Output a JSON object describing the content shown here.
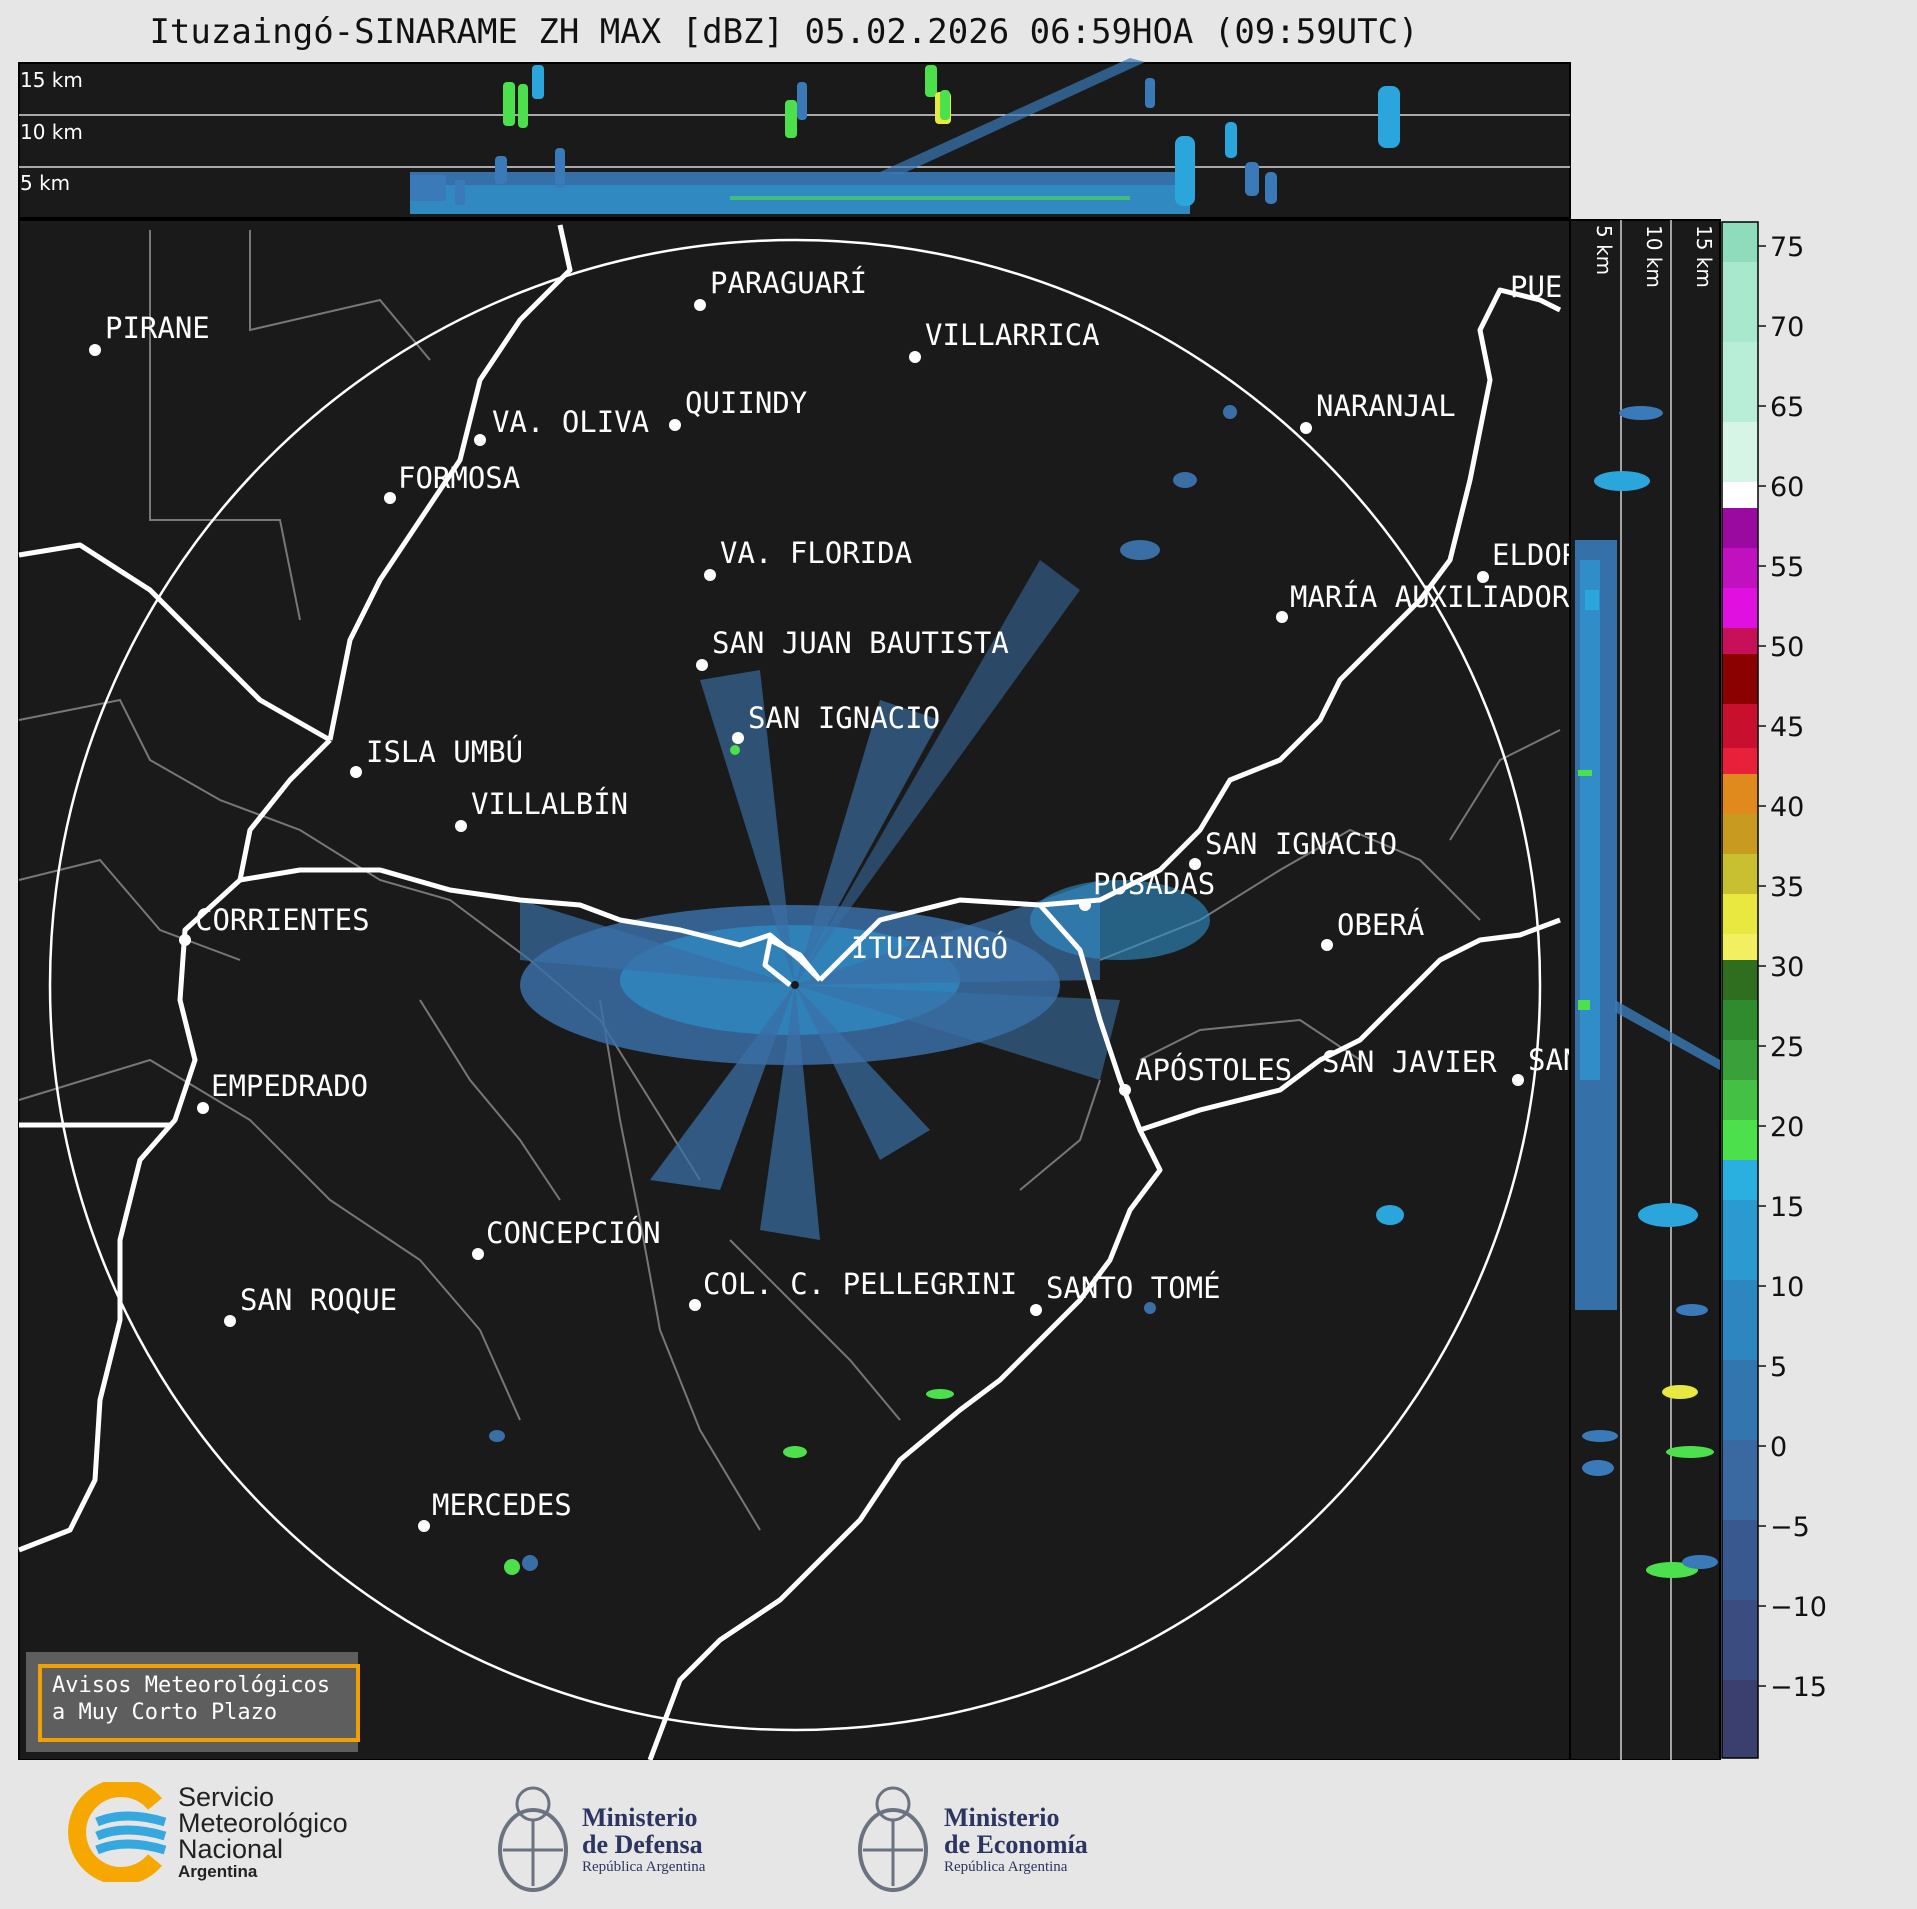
{
  "header": {
    "title": "Ituzaingó-SINARAME ZH MAX [dBZ] 05.02.2026 06:59HOA (09:59UTC)"
  },
  "top_panel": {
    "altitude_labels": [
      "15 km",
      "10 km",
      "5 km"
    ]
  },
  "side_panel": {
    "altitude_labels": [
      "5 km",
      "10 km",
      "15 km"
    ]
  },
  "colorbar": {
    "ticks": [
      "75",
      "70",
      "65",
      "60",
      "55",
      "50",
      "45",
      "40",
      "35",
      "30",
      "25",
      "20",
      "15",
      "10",
      "5",
      "0",
      "−5",
      "−10",
      "−15"
    ],
    "colors": {
      "light_greens": "#9fe6c6",
      "purple": "#9a0aa0",
      "magenta": "#e010e0",
      "red": "#c8102e",
      "orange": "#e08a1e",
      "yellow": "#e8e840",
      "green": "#2e8b2e",
      "light_green": "#4de04d",
      "cyan": "#2aaad8",
      "blue": "#3b72a8",
      "navy": "#3a3f6e"
    }
  },
  "map": {
    "background": "#1a1a1a",
    "cities": [
      {
        "name": "PIRANE"
      },
      {
        "name": "PARAGUARÍ"
      },
      {
        "name": "VILLARRICA"
      },
      {
        "name": "VA. OLIVA"
      },
      {
        "name": "QUIINDY"
      },
      {
        "name": "NARANJAL"
      },
      {
        "name": "FORMOSA"
      },
      {
        "name": "VA. FLORIDA"
      },
      {
        "name": "ELDOR"
      },
      {
        "name": "MARÍA AUXILIADOR"
      },
      {
        "name": "SAN JUAN BAUTISTA"
      },
      {
        "name": "SAN IGNACIO"
      },
      {
        "name": "ISLA UMBÚ"
      },
      {
        "name": "VILLALBÍN"
      },
      {
        "name": "SAN IGNACIO"
      },
      {
        "name": "POSADAS"
      },
      {
        "name": "CORRIENTES"
      },
      {
        "name": "ITUZAINGÓ"
      },
      {
        "name": "OBERÁ"
      },
      {
        "name": "APÓSTOLES"
      },
      {
        "name": "SAN JAVIER"
      },
      {
        "name": "SAN"
      },
      {
        "name": "EMPEDRADO"
      },
      {
        "name": "CONCEPCIÓN"
      },
      {
        "name": "COL. C. PELLEGRINI"
      },
      {
        "name": "SANTO TOMÉ"
      },
      {
        "name": "SAN ROQUE"
      },
      {
        "name": "MERCEDES"
      },
      {
        "name": "PUE"
      }
    ]
  },
  "warning_button": {
    "line1": "Avisos Meteorológicos",
    "line2": "a Muy Corto Plazo"
  },
  "footer": {
    "smn": {
      "line1": "Servicio",
      "line2": "Meteorológico",
      "line3": "Nacional",
      "line4": "Argentina"
    },
    "defensa": {
      "line1": "Ministerio",
      "line2": "de Defensa",
      "line3": "República Argentina"
    },
    "economia": {
      "line1": "Ministerio",
      "line2": "de Economía",
      "line3": "República Argentina"
    }
  }
}
